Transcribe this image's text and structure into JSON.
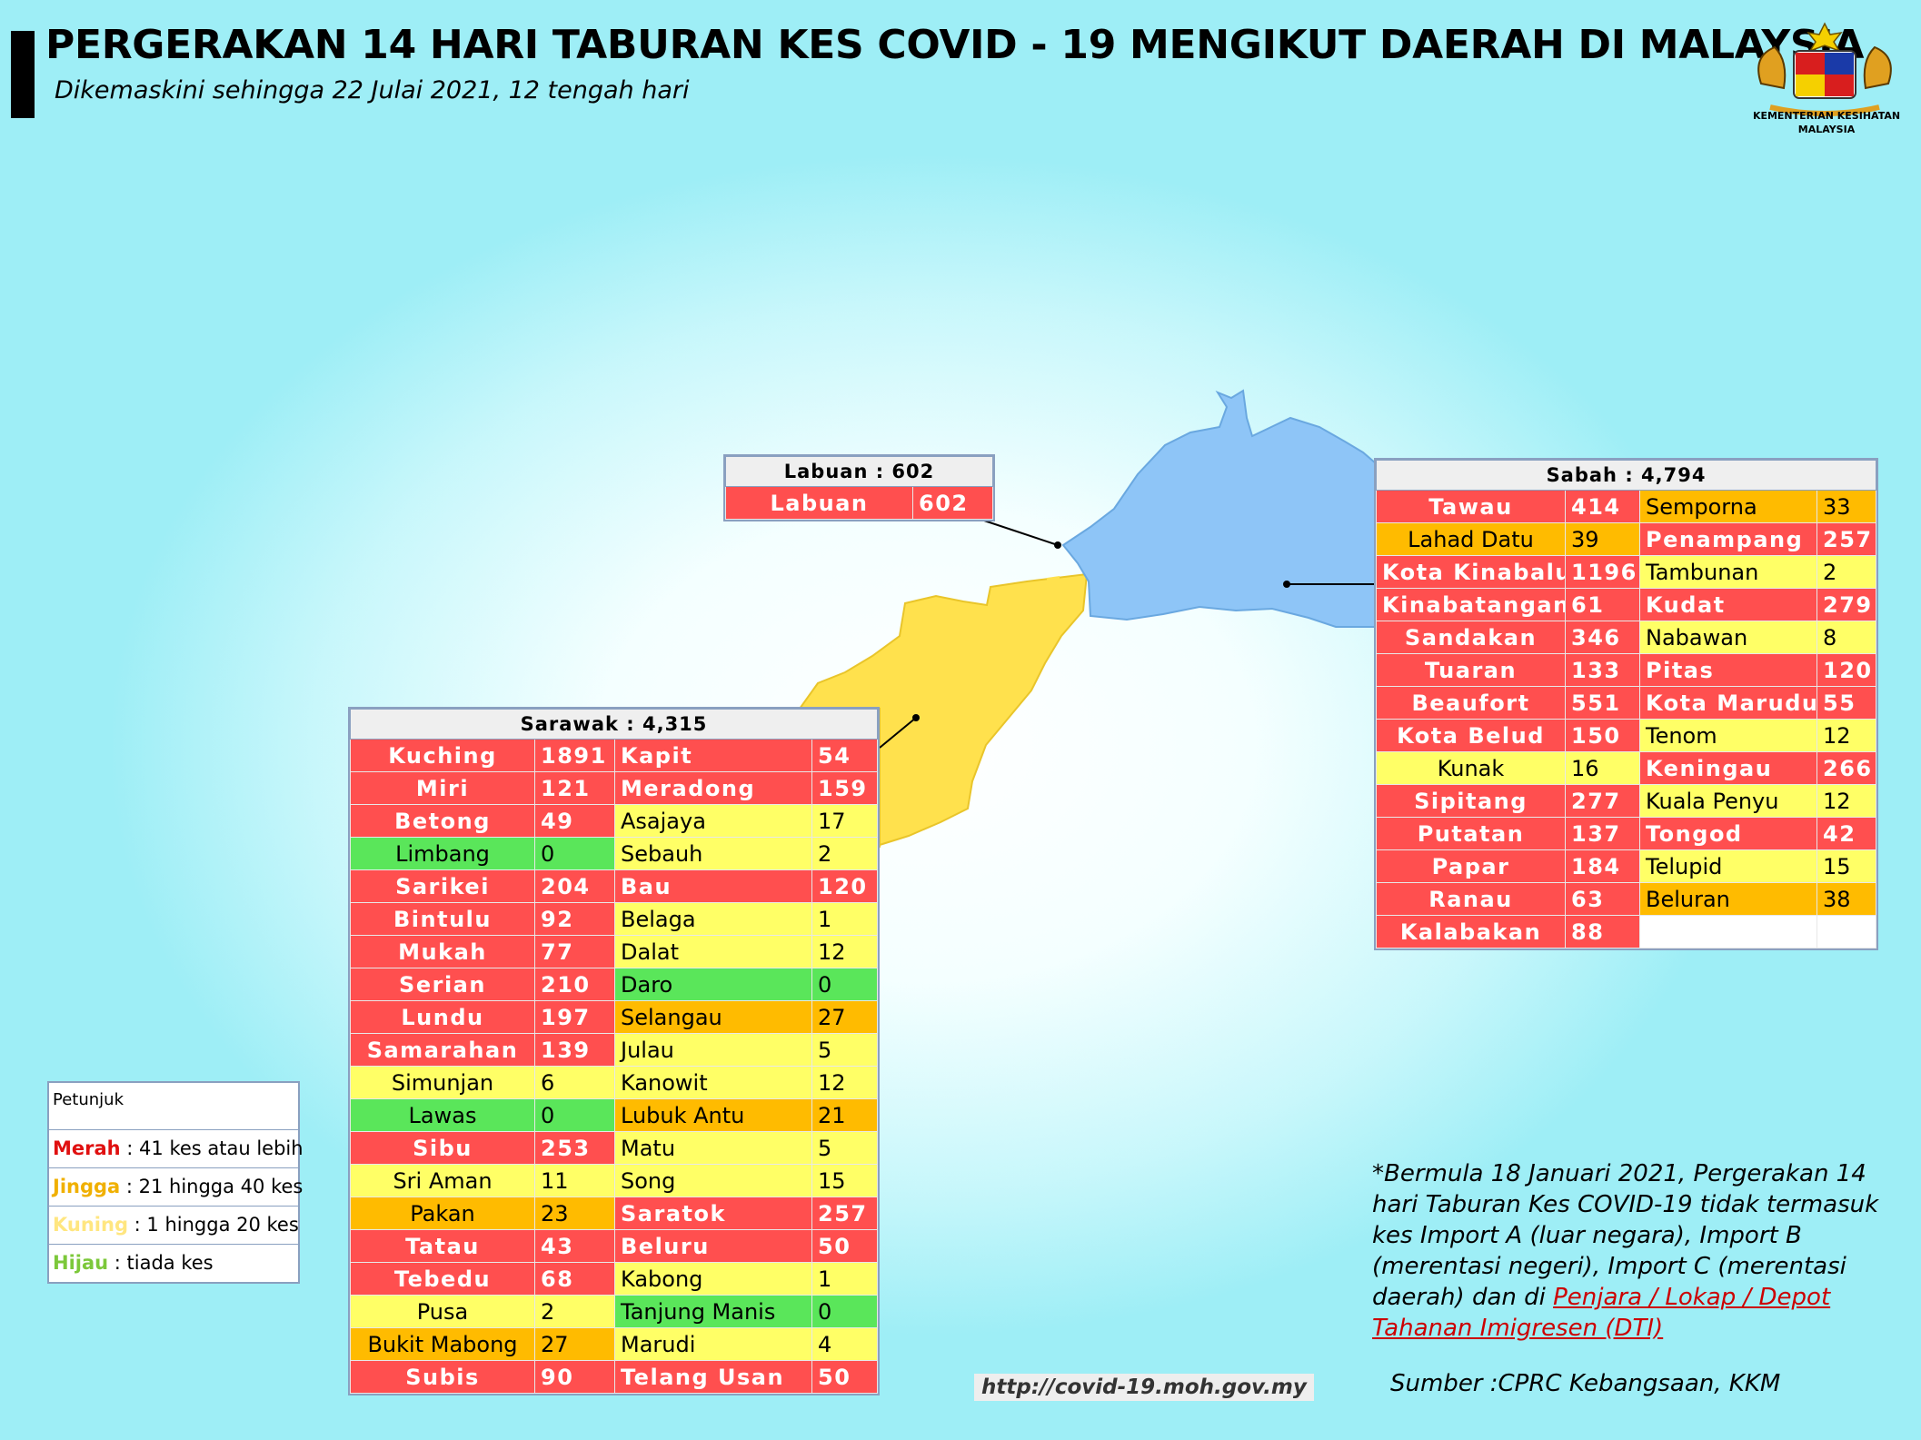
{
  "header": {
    "title": "PERGERAKAN 14 HARI TABURAN KES COVID - 19 MENGIKUT DAERAH DI MALAYSIA",
    "subtitle": "Dikemaskini sehingga 22 Julai 2021, 12 tengah hari",
    "logo_line1": "KEMENTERIAN KESIHATAN",
    "logo_line2": "MALAYSIA"
  },
  "colors": {
    "red": "#ff4f4f",
    "orange": "#ffbb00",
    "yellow": "#ffff66",
    "green": "#5ae65a",
    "sabah_map": "#8ec5f7",
    "sarawak_map": "#ffe14d"
  },
  "labuan": {
    "title": "Labuan : 602",
    "rows": [
      [
        "Labuan",
        "602",
        "red"
      ]
    ]
  },
  "sabah": {
    "title": "Sabah : 4,794",
    "rows": [
      [
        [
          "Tawau",
          "414",
          "red"
        ],
        [
          "Semporna",
          "33",
          "orange"
        ]
      ],
      [
        [
          "Lahad Datu",
          "39",
          "orange"
        ],
        [
          "Penampang",
          "257",
          "red"
        ]
      ],
      [
        [
          "Kota Kinabalu",
          "1196",
          "red"
        ],
        [
          "Tambunan",
          "2",
          "yellow"
        ]
      ],
      [
        [
          "Kinabatangan",
          "61",
          "red"
        ],
        [
          "Kudat",
          "279",
          "red"
        ]
      ],
      [
        [
          "Sandakan",
          "346",
          "red"
        ],
        [
          "Nabawan",
          "8",
          "yellow"
        ]
      ],
      [
        [
          "Tuaran",
          "133",
          "red"
        ],
        [
          "Pitas",
          "120",
          "red"
        ]
      ],
      [
        [
          "Beaufort",
          "551",
          "red"
        ],
        [
          "Kota Marudu",
          "55",
          "red"
        ]
      ],
      [
        [
          "Kota Belud",
          "150",
          "red"
        ],
        [
          "Tenom",
          "12",
          "yellow"
        ]
      ],
      [
        [
          "Kunak",
          "16",
          "yellow"
        ],
        [
          "Keningau",
          "266",
          "red"
        ]
      ],
      [
        [
          "Sipitang",
          "277",
          "red"
        ],
        [
          "Kuala Penyu",
          "12",
          "yellow"
        ]
      ],
      [
        [
          "Putatan",
          "137",
          "red"
        ],
        [
          "Tongod",
          "42",
          "red"
        ]
      ],
      [
        [
          "Papar",
          "184",
          "red"
        ],
        [
          "Telupid",
          "15",
          "yellow"
        ]
      ],
      [
        [
          "Ranau",
          "63",
          "red"
        ],
        [
          "Beluran",
          "38",
          "orange"
        ]
      ],
      [
        [
          "Kalabakan",
          "88",
          "red"
        ],
        [
          "",
          "",
          "empty"
        ]
      ]
    ]
  },
  "sarawak": {
    "title": "Sarawak : 4,315",
    "rows": [
      [
        [
          "Kuching",
          "1891",
          "red"
        ],
        [
          "Kapit",
          "54",
          "red"
        ]
      ],
      [
        [
          "Miri",
          "121",
          "red"
        ],
        [
          "Meradong",
          "159",
          "red"
        ]
      ],
      [
        [
          "Betong",
          "49",
          "red"
        ],
        [
          "Asajaya",
          "17",
          "yellow"
        ]
      ],
      [
        [
          "Limbang",
          "0",
          "green"
        ],
        [
          "Sebauh",
          "2",
          "yellow"
        ]
      ],
      [
        [
          "Sarikei",
          "204",
          "red"
        ],
        [
          "Bau",
          "120",
          "red"
        ]
      ],
      [
        [
          "Bintulu",
          "92",
          "red"
        ],
        [
          "Belaga",
          "1",
          "yellow"
        ]
      ],
      [
        [
          "Mukah",
          "77",
          "red"
        ],
        [
          "Dalat",
          "12",
          "yellow"
        ]
      ],
      [
        [
          "Serian",
          "210",
          "red"
        ],
        [
          "Daro",
          "0",
          "green"
        ]
      ],
      [
        [
          "Lundu",
          "197",
          "red"
        ],
        [
          "Selangau",
          "27",
          "orange"
        ]
      ],
      [
        [
          "Samarahan",
          "139",
          "red"
        ],
        [
          "Julau",
          "5",
          "yellow"
        ]
      ],
      [
        [
          "Simunjan",
          "6",
          "yellow"
        ],
        [
          "Kanowit",
          "12",
          "yellow"
        ]
      ],
      [
        [
          "Lawas",
          "0",
          "green"
        ],
        [
          "Lubuk Antu",
          "21",
          "orange"
        ]
      ],
      [
        [
          "Sibu",
          "253",
          "red"
        ],
        [
          "Matu",
          "5",
          "yellow"
        ]
      ],
      [
        [
          "Sri Aman",
          "11",
          "yellow"
        ],
        [
          "Song",
          "15",
          "yellow"
        ]
      ],
      [
        [
          "Pakan",
          "23",
          "orange"
        ],
        [
          "Saratok",
          "257",
          "red"
        ]
      ],
      [
        [
          "Tatau",
          "43",
          "red"
        ],
        [
          "Beluru",
          "50",
          "red"
        ]
      ],
      [
        [
          "Tebedu",
          "68",
          "red"
        ],
        [
          "Kabong",
          "1",
          "yellow"
        ]
      ],
      [
        [
          "Pusa",
          "2",
          "yellow"
        ],
        [
          "Tanjung Manis",
          "0",
          "green"
        ]
      ],
      [
        [
          "Bukit Mabong",
          "27",
          "orange"
        ],
        [
          "Marudi",
          "4",
          "yellow"
        ]
      ],
      [
        [
          "Subis",
          "90",
          "red"
        ],
        [
          "Telang Usan",
          "50",
          "red"
        ]
      ]
    ]
  },
  "legend": {
    "heading": "Petunjuk",
    "items": [
      {
        "key": "Merah",
        "text": " : 41 kes atau lebih",
        "color": "#e01010"
      },
      {
        "key": "Jingga",
        "text": " : 21 hingga 40 kes",
        "color": "#f0b000"
      },
      {
        "key": "Kuning",
        "text": " : 1 hingga 20 kes",
        "color": "#ffe680"
      },
      {
        "key": "Hijau",
        "text": " : tiada kes",
        "color": "#7cc83a"
      }
    ]
  },
  "note": {
    "text": "*Bermula 18 Januari 2021, Pergerakan 14 hari Taburan Kes COVID-19 tidak termasuk kes Import A (luar negara), Import B (merentasi negeri), Import C (merentasi daerah) dan di ",
    "link": "Penjara / Lokap / Depot Tahanan Imigresen (DTI)"
  },
  "footer": {
    "url": "http://covid-19.moh.gov.my",
    "source": "Sumber :CPRC Kebangsaan,  KKM"
  }
}
